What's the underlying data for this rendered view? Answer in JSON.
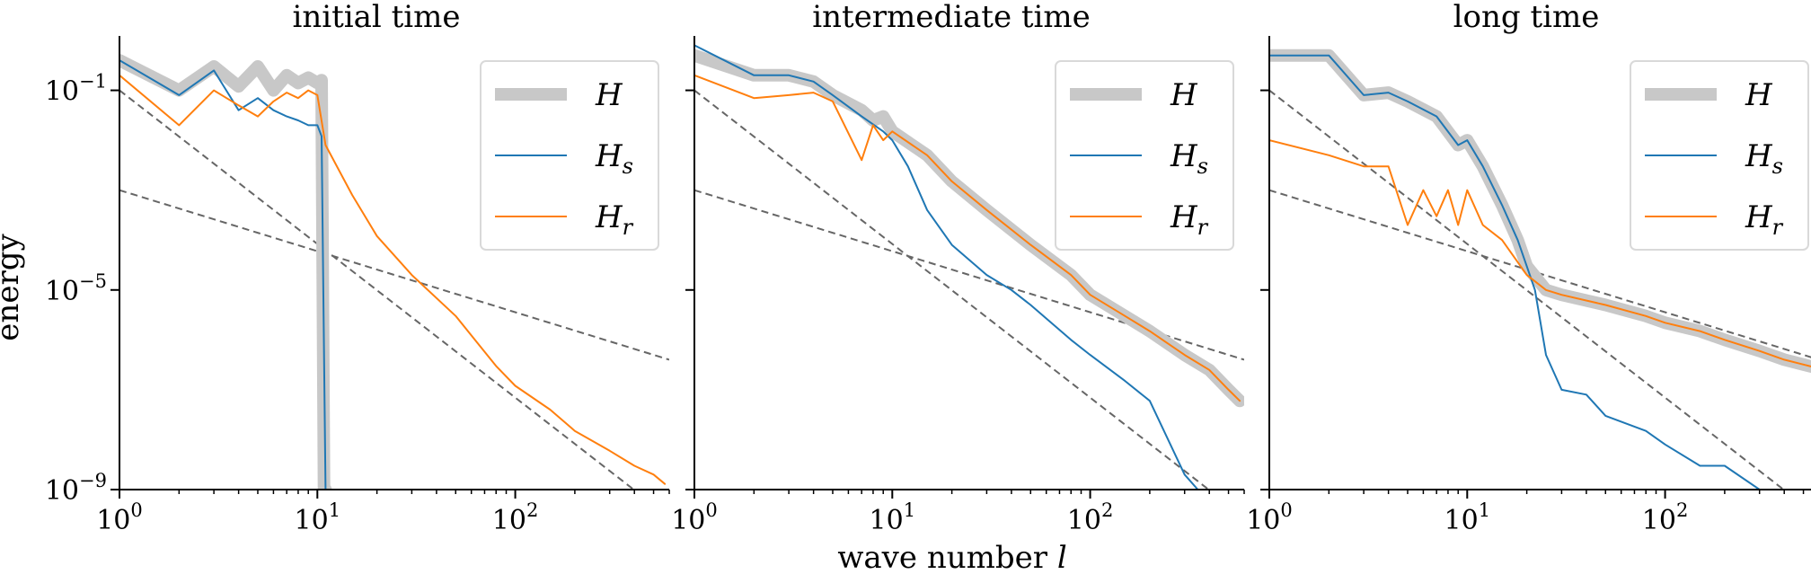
{
  "figure": {
    "ylabel": "energy",
    "xlabel_prefix": "wave number ",
    "xlabel_symbol": "l"
  },
  "colors": {
    "H": "#c8c8c8",
    "Hs": "#1f77b4",
    "Hr": "#ff7f0e",
    "reference": "#666666"
  },
  "chart_data": [
    {
      "type": "line",
      "title": "initial time",
      "xscale": "log",
      "yscale": "log",
      "xlim": [
        1,
        600
      ],
      "ylim": [
        1e-09,
        1
      ],
      "xticks": [
        "10^0",
        "10^1",
        "10^2"
      ],
      "yticks": [
        "10^-1",
        "10^-5",
        "10^-9"
      ],
      "legend": {
        "placement": "top-right",
        "entries": [
          "H",
          "H_s",
          "H_r"
        ]
      },
      "series": [
        {
          "name": "H",
          "x": [
            1,
            2,
            3,
            4,
            5,
            6,
            7,
            8,
            9,
            10,
            10.5,
            10.8,
            11
          ],
          "y": [
            0.4,
            0.1,
            0.3,
            0.12,
            0.3,
            0.1,
            0.2,
            0.14,
            0.18,
            0.14,
            0.16,
            1e-09,
            1e-09
          ]
        },
        {
          "name": "H_s",
          "x": [
            1,
            2,
            3,
            4,
            5,
            6,
            7,
            8,
            9,
            10,
            10.5,
            11
          ],
          "y": [
            0.4,
            0.08,
            0.25,
            0.04,
            0.07,
            0.04,
            0.03,
            0.025,
            0.02,
            0.02,
            0.012,
            1e-09
          ]
        },
        {
          "name": "H_r",
          "x": [
            1,
            2,
            3,
            4,
            5,
            6,
            7,
            8,
            9,
            10,
            11,
            15,
            20,
            30,
            50,
            80,
            100,
            150,
            200,
            300,
            400,
            500,
            570
          ],
          "y": [
            0.2,
            0.02,
            0.1,
            0.05,
            0.03,
            0.06,
            0.09,
            0.07,
            0.1,
            0.08,
            0.008,
            0.0008,
            0.00012,
            2e-05,
            3e-06,
            3e-07,
            1.2e-07,
            4e-08,
            1.5e-08,
            6e-09,
            3e-09,
            2e-09,
            1.3e-09
          ]
        }
      ],
      "reference_lines": [
        {
          "x": [
            1,
            600
          ],
          "y": [
            0.1,
            2.8e-10
          ]
        },
        {
          "x": [
            1,
            600
          ],
          "y": [
            0.001,
            4e-07
          ]
        }
      ]
    },
    {
      "type": "line",
      "title": "intermediate time",
      "xscale": "log",
      "yscale": "log",
      "xlim": [
        1,
        600
      ],
      "ylim": [
        1e-09,
        1
      ],
      "xticks": [
        "10^0",
        "10^1",
        "10^2"
      ],
      "yticks": [],
      "legend": {
        "placement": "top-right",
        "entries": [
          "H",
          "H_s",
          "H_r"
        ]
      },
      "series": [
        {
          "name": "H",
          "x": [
            1,
            2,
            3,
            4,
            5,
            7,
            8,
            9,
            10,
            15,
            20,
            30,
            50,
            80,
            100,
            150,
            200,
            300,
            400,
            500,
            570
          ],
          "y": [
            0.5,
            0.2,
            0.2,
            0.15,
            0.08,
            0.04,
            0.025,
            0.03,
            0.015,
            0.005,
            0.0015,
            0.0004,
            8e-05,
            2e-05,
            8e-06,
            3e-06,
            1.5e-06,
            5e-07,
            2.5e-07,
            1e-07,
            6e-08
          ]
        },
        {
          "name": "H_s",
          "x": [
            1,
            2,
            3,
            4,
            5,
            7,
            9,
            10,
            12,
            15,
            20,
            30,
            40,
            50,
            80,
            100,
            150,
            200,
            300,
            350
          ],
          "y": [
            0.8,
            0.2,
            0.2,
            0.15,
            0.08,
            0.03,
            0.015,
            0.01,
            0.003,
            0.0004,
            8e-05,
            2e-05,
            1e-05,
            5e-06,
            1e-06,
            5e-07,
            1.5e-07,
            6e-08,
            2e-09,
            1e-09
          ]
        },
        {
          "name": "H_r",
          "x": [
            1,
            2,
            3,
            4,
            5,
            7,
            8,
            9,
            10,
            15,
            20,
            30,
            50,
            80,
            100,
            150,
            200,
            300,
            400,
            500,
            570
          ],
          "y": [
            0.2,
            0.07,
            0.08,
            0.09,
            0.06,
            0.004,
            0.02,
            0.01,
            0.015,
            0.005,
            0.0015,
            0.0004,
            8e-05,
            2e-05,
            8e-06,
            3e-06,
            1.5e-06,
            5e-07,
            2.5e-07,
            1e-07,
            6e-08
          ]
        }
      ],
      "reference_lines": [
        {
          "x": [
            1,
            600
          ],
          "y": [
            0.1,
            2.8e-10
          ]
        },
        {
          "x": [
            1,
            600
          ],
          "y": [
            0.001,
            4e-07
          ]
        }
      ]
    },
    {
      "type": "line",
      "title": "long time",
      "xscale": "log",
      "yscale": "log",
      "xlim": [
        1,
        600
      ],
      "ylim": [
        1e-09,
        1
      ],
      "xticks": [
        "10^0",
        "10^1",
        "10^2"
      ],
      "yticks": [],
      "legend": {
        "placement": "top-right",
        "entries": [
          "H",
          "H_s",
          "H_r"
        ]
      },
      "series": [
        {
          "name": "H",
          "x": [
            1,
            2,
            3,
            4,
            5,
            7,
            9,
            10,
            12,
            15,
            18,
            20,
            25,
            30,
            50,
            80,
            100,
            150,
            200,
            300,
            400,
            500,
            570
          ],
          "y": [
            0.5,
            0.5,
            0.08,
            0.09,
            0.06,
            0.03,
            0.008,
            0.01,
            0.003,
            0.0005,
            0.0001,
            3e-05,
            1e-05,
            8e-06,
            5e-06,
            3e-06,
            2.2e-06,
            1.5e-06,
            1e-06,
            6e-07,
            4e-07,
            3.2e-07,
            2.8e-07
          ]
        },
        {
          "name": "H_s",
          "x": [
            1,
            2,
            3,
            4,
            5,
            7,
            9,
            10,
            12,
            15,
            18,
            20,
            22,
            25,
            30,
            40,
            50,
            80,
            100,
            150,
            200,
            300,
            350
          ],
          "y": [
            0.5,
            0.5,
            0.08,
            0.09,
            0.06,
            0.03,
            0.008,
            0.01,
            0.003,
            0.0005,
            0.0001,
            3e-05,
            1e-05,
            5e-07,
            1e-07,
            8e-08,
            3e-08,
            1.5e-08,
            8e-09,
            3e-09,
            3e-09,
            1e-09,
            8e-10
          ]
        },
        {
          "name": "H_r",
          "x": [
            1,
            2,
            3,
            4,
            5,
            6,
            7,
            8,
            9,
            10,
            12,
            15,
            20,
            25,
            30,
            50,
            80,
            100,
            150,
            200,
            300,
            400,
            500,
            570
          ],
          "y": [
            0.01,
            0.005,
            0.003,
            0.003,
            0.0002,
            0.001,
            0.0003,
            0.001,
            0.0002,
            0.001,
            0.0002,
            0.0001,
            2e-05,
            1e-05,
            8e-06,
            5e-06,
            3e-06,
            2.2e-06,
            1.5e-06,
            1e-06,
            6e-07,
            4e-07,
            3.2e-07,
            2.8e-07
          ]
        }
      ],
      "reference_lines": [
        {
          "x": [
            1,
            600
          ],
          "y": [
            0.1,
            2.8e-10
          ]
        },
        {
          "x": [
            1,
            600
          ],
          "y": [
            0.001,
            4e-07
          ]
        }
      ]
    }
  ]
}
